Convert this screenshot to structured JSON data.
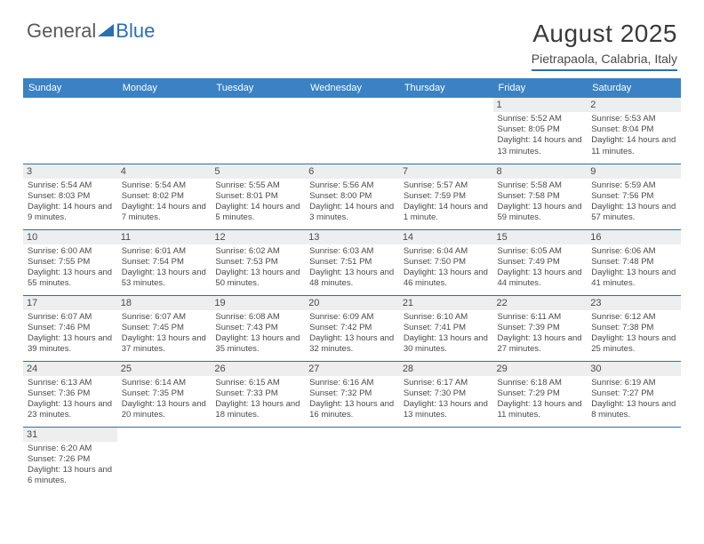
{
  "logo": {
    "text1": "General",
    "text2": "Blue"
  },
  "title": "August 2025",
  "location": "Pietrapaola, Calabria, Italy",
  "colors": {
    "header_bg": "#3a82c4",
    "header_fg": "#ffffff",
    "rule": "#2b6fb3",
    "daybar": "#eceeef",
    "text": "#4a4a4a"
  },
  "day_headers": [
    "Sunday",
    "Monday",
    "Tuesday",
    "Wednesday",
    "Thursday",
    "Friday",
    "Saturday"
  ],
  "weeks": [
    [
      {
        "empty": true
      },
      {
        "empty": true
      },
      {
        "empty": true
      },
      {
        "empty": true
      },
      {
        "empty": true
      },
      {
        "n": "1",
        "sr": "Sunrise: 5:52 AM",
        "ss": "Sunset: 8:05 PM",
        "dl": "Daylight: 14 hours and 13 minutes."
      },
      {
        "n": "2",
        "sr": "Sunrise: 5:53 AM",
        "ss": "Sunset: 8:04 PM",
        "dl": "Daylight: 14 hours and 11 minutes."
      }
    ],
    [
      {
        "n": "3",
        "sr": "Sunrise: 5:54 AM",
        "ss": "Sunset: 8:03 PM",
        "dl": "Daylight: 14 hours and 9 minutes."
      },
      {
        "n": "4",
        "sr": "Sunrise: 5:54 AM",
        "ss": "Sunset: 8:02 PM",
        "dl": "Daylight: 14 hours and 7 minutes."
      },
      {
        "n": "5",
        "sr": "Sunrise: 5:55 AM",
        "ss": "Sunset: 8:01 PM",
        "dl": "Daylight: 14 hours and 5 minutes."
      },
      {
        "n": "6",
        "sr": "Sunrise: 5:56 AM",
        "ss": "Sunset: 8:00 PM",
        "dl": "Daylight: 14 hours and 3 minutes."
      },
      {
        "n": "7",
        "sr": "Sunrise: 5:57 AM",
        "ss": "Sunset: 7:59 PM",
        "dl": "Daylight: 14 hours and 1 minute."
      },
      {
        "n": "8",
        "sr": "Sunrise: 5:58 AM",
        "ss": "Sunset: 7:58 PM",
        "dl": "Daylight: 13 hours and 59 minutes."
      },
      {
        "n": "9",
        "sr": "Sunrise: 5:59 AM",
        "ss": "Sunset: 7:56 PM",
        "dl": "Daylight: 13 hours and 57 minutes."
      }
    ],
    [
      {
        "n": "10",
        "sr": "Sunrise: 6:00 AM",
        "ss": "Sunset: 7:55 PM",
        "dl": "Daylight: 13 hours and 55 minutes."
      },
      {
        "n": "11",
        "sr": "Sunrise: 6:01 AM",
        "ss": "Sunset: 7:54 PM",
        "dl": "Daylight: 13 hours and 53 minutes."
      },
      {
        "n": "12",
        "sr": "Sunrise: 6:02 AM",
        "ss": "Sunset: 7:53 PM",
        "dl": "Daylight: 13 hours and 50 minutes."
      },
      {
        "n": "13",
        "sr": "Sunrise: 6:03 AM",
        "ss": "Sunset: 7:51 PM",
        "dl": "Daylight: 13 hours and 48 minutes."
      },
      {
        "n": "14",
        "sr": "Sunrise: 6:04 AM",
        "ss": "Sunset: 7:50 PM",
        "dl": "Daylight: 13 hours and 46 minutes."
      },
      {
        "n": "15",
        "sr": "Sunrise: 6:05 AM",
        "ss": "Sunset: 7:49 PM",
        "dl": "Daylight: 13 hours and 44 minutes."
      },
      {
        "n": "16",
        "sr": "Sunrise: 6:06 AM",
        "ss": "Sunset: 7:48 PM",
        "dl": "Daylight: 13 hours and 41 minutes."
      }
    ],
    [
      {
        "n": "17",
        "sr": "Sunrise: 6:07 AM",
        "ss": "Sunset: 7:46 PM",
        "dl": "Daylight: 13 hours and 39 minutes."
      },
      {
        "n": "18",
        "sr": "Sunrise: 6:07 AM",
        "ss": "Sunset: 7:45 PM",
        "dl": "Daylight: 13 hours and 37 minutes."
      },
      {
        "n": "19",
        "sr": "Sunrise: 6:08 AM",
        "ss": "Sunset: 7:43 PM",
        "dl": "Daylight: 13 hours and 35 minutes."
      },
      {
        "n": "20",
        "sr": "Sunrise: 6:09 AM",
        "ss": "Sunset: 7:42 PM",
        "dl": "Daylight: 13 hours and 32 minutes."
      },
      {
        "n": "21",
        "sr": "Sunrise: 6:10 AM",
        "ss": "Sunset: 7:41 PM",
        "dl": "Daylight: 13 hours and 30 minutes."
      },
      {
        "n": "22",
        "sr": "Sunrise: 6:11 AM",
        "ss": "Sunset: 7:39 PM",
        "dl": "Daylight: 13 hours and 27 minutes."
      },
      {
        "n": "23",
        "sr": "Sunrise: 6:12 AM",
        "ss": "Sunset: 7:38 PM",
        "dl": "Daylight: 13 hours and 25 minutes."
      }
    ],
    [
      {
        "n": "24",
        "sr": "Sunrise: 6:13 AM",
        "ss": "Sunset: 7:36 PM",
        "dl": "Daylight: 13 hours and 23 minutes."
      },
      {
        "n": "25",
        "sr": "Sunrise: 6:14 AM",
        "ss": "Sunset: 7:35 PM",
        "dl": "Daylight: 13 hours and 20 minutes."
      },
      {
        "n": "26",
        "sr": "Sunrise: 6:15 AM",
        "ss": "Sunset: 7:33 PM",
        "dl": "Daylight: 13 hours and 18 minutes."
      },
      {
        "n": "27",
        "sr": "Sunrise: 6:16 AM",
        "ss": "Sunset: 7:32 PM",
        "dl": "Daylight: 13 hours and 16 minutes."
      },
      {
        "n": "28",
        "sr": "Sunrise: 6:17 AM",
        "ss": "Sunset: 7:30 PM",
        "dl": "Daylight: 13 hours and 13 minutes."
      },
      {
        "n": "29",
        "sr": "Sunrise: 6:18 AM",
        "ss": "Sunset: 7:29 PM",
        "dl": "Daylight: 13 hours and 11 minutes."
      },
      {
        "n": "30",
        "sr": "Sunrise: 6:19 AM",
        "ss": "Sunset: 7:27 PM",
        "dl": "Daylight: 13 hours and 8 minutes."
      }
    ],
    [
      {
        "n": "31",
        "sr": "Sunrise: 6:20 AM",
        "ss": "Sunset: 7:26 PM",
        "dl": "Daylight: 13 hours and 6 minutes."
      },
      {
        "empty": true
      },
      {
        "empty": true
      },
      {
        "empty": true
      },
      {
        "empty": true
      },
      {
        "empty": true
      },
      {
        "empty": true
      }
    ]
  ]
}
